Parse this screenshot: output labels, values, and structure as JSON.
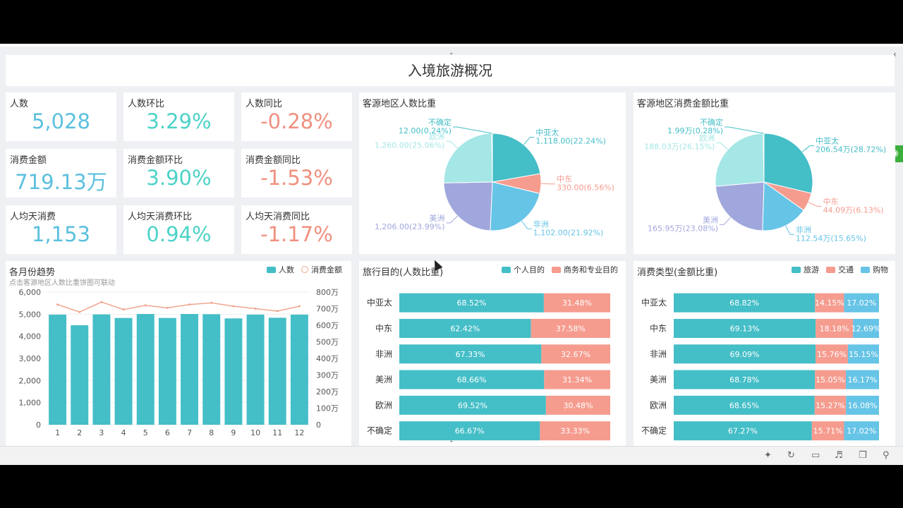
{
  "page_title": "入境旅游概况",
  "colors": {
    "teal": "#44bec7",
    "coral": "#f59c8f",
    "blue": "#66c4e6",
    "lightteal": "#a5e6e6",
    "purple": "#a0a7dd",
    "kpi_blue": "#5bc0de",
    "kpi_teal": "#4dd3c7",
    "kpi_red": "#f0907f"
  },
  "kpis": [
    {
      "label": "人数",
      "value": "5,028",
      "color": "#5bc0de"
    },
    {
      "label": "人数环比",
      "value": "3.29%",
      "color": "#4dd3c7"
    },
    {
      "label": "人数同比",
      "value": "-0.28%",
      "color": "#f0907f"
    },
    {
      "label": "消费金额",
      "value": "719.13万",
      "color": "#5bc0de"
    },
    {
      "label": "消费金额环比",
      "value": "3.90%",
      "color": "#4dd3c7"
    },
    {
      "label": "消费金额同比",
      "value": "-1.53%",
      "color": "#f0907f"
    },
    {
      "label": "人均天消费",
      "value": "1,153",
      "color": "#5bc0de"
    },
    {
      "label": "人均天消费环比",
      "value": "0.94%",
      "color": "#4dd3c7"
    },
    {
      "label": "人均天消费同比",
      "value": "-1.17%",
      "color": "#f0907f"
    }
  ],
  "chart_data": [
    {
      "type": "pie",
      "title": "客源地区人数比重",
      "slices": [
        {
          "name": "中亚太",
          "value": 1118.0,
          "label": "1,118.00(22.24%)",
          "color": "#44bec7"
        },
        {
          "name": "中东",
          "value": 330.0,
          "label": "330.00(6.56%)",
          "color": "#f59c8f"
        },
        {
          "name": "非洲",
          "value": 1102.0,
          "label": "1,102.00(21.92%)",
          "color": "#66c4e6"
        },
        {
          "name": "美洲",
          "value": 1206.0,
          "label": "1,206.00(23.99%)",
          "color": "#a0a7dd"
        },
        {
          "name": "欧洲",
          "value": 1260.0,
          "label": "1,260.00(25.06%)",
          "color": "#a5e6e6"
        },
        {
          "name": "不确定",
          "value": 12.0,
          "label": "12.00(0.24%)",
          "color": "#44bec7"
        }
      ]
    },
    {
      "type": "pie",
      "title": "客源地区消费金额比重",
      "slices": [
        {
          "name": "中亚太",
          "value": 206.54,
          "label": "206.54万(28.72%)",
          "color": "#44bec7"
        },
        {
          "name": "中东",
          "value": 44.09,
          "label": "44.09万(6.13%)",
          "color": "#f59c8f"
        },
        {
          "name": "非洲",
          "value": 112.54,
          "label": "112.54万(15.65%)",
          "color": "#66c4e6"
        },
        {
          "name": "美洲",
          "value": 165.95,
          "label": "165.95万(23.08%)",
          "color": "#a0a7dd"
        },
        {
          "name": "欧洲",
          "value": 188.03,
          "label": "188.03万(26.15%)",
          "color": "#a5e6e6"
        },
        {
          "name": "不确定",
          "value": 1.99,
          "label": "1.99万(0.28%)",
          "color": "#44bec7"
        }
      ]
    },
    {
      "type": "bar",
      "title": "各月份趋势",
      "subtitle": "点击客源地区人数比重饼图可联动",
      "categories": [
        "1",
        "2",
        "3",
        "4",
        "5",
        "6",
        "7",
        "8",
        "9",
        "10",
        "11",
        "12"
      ],
      "series": [
        {
          "name": "人数",
          "type": "bar",
          "axis": "left",
          "color": "#44bec7",
          "values": [
            4980,
            4500,
            4990,
            4830,
            5010,
            4830,
            5010,
            5000,
            4810,
            4980,
            4840,
            4980
          ]
        },
        {
          "name": "消费金额",
          "type": "line",
          "axis": "right",
          "color": "#f0a58f",
          "values": [
            725,
            680,
            740,
            695,
            720,
            705,
            725,
            735,
            715,
            700,
            685,
            715
          ]
        }
      ],
      "ylim": [
        0,
        6000
      ],
      "yticks": [
        "0",
        "1,000",
        "2,000",
        "3,000",
        "4,000",
        "5,000",
        "6,000"
      ],
      "y2lim": [
        0,
        800
      ],
      "y2ticks": [
        "0",
        "100万",
        "200万",
        "300万",
        "400万",
        "500万",
        "600万",
        "700万",
        "800万"
      ]
    },
    {
      "type": "bar",
      "stacked": true,
      "orientation": "horizontal",
      "title": "旅行目的(人数比重)",
      "categories": [
        "中亚太",
        "中东",
        "非洲",
        "美洲",
        "欧洲",
        "不确定"
      ],
      "series": [
        {
          "name": "个人目的",
          "color": "#44bec7",
          "values": [
            68.52,
            62.42,
            67.33,
            68.66,
            69.52,
            66.67
          ]
        },
        {
          "name": "商务和专业目的",
          "color": "#f59c8f",
          "values": [
            31.48,
            37.58,
            32.67,
            31.34,
            30.48,
            33.33
          ]
        }
      ]
    },
    {
      "type": "bar",
      "stacked": true,
      "orientation": "horizontal",
      "title": "消费类型(金额比重)",
      "categories": [
        "中亚太",
        "中东",
        "非洲",
        "美洲",
        "欧洲",
        "不确定"
      ],
      "series": [
        {
          "name": "旅游",
          "color": "#44bec7",
          "values": [
            68.82,
            69.13,
            69.09,
            68.78,
            68.65,
            67.27
          ]
        },
        {
          "name": "交通",
          "color": "#f59c8f",
          "values": [
            14.15,
            18.18,
            15.76,
            15.05,
            15.27,
            15.71
          ]
        },
        {
          "name": "购物",
          "color": "#66c4e6",
          "values": [
            17.02,
            12.69,
            15.15,
            16.17,
            16.08,
            17.02
          ]
        }
      ]
    }
  ],
  "statusbar_icons": [
    "pin-icon",
    "refresh-icon",
    "trash-icon",
    "volume-icon",
    "window-icon",
    "search-icon"
  ]
}
